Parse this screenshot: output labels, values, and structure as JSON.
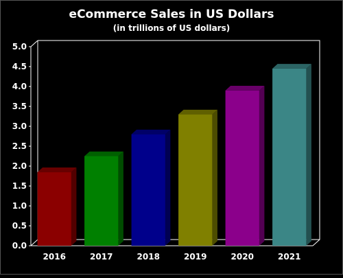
{
  "chart_data": {
    "type": "bar",
    "title": "eCommerce Sales in US Dollars",
    "subtitle": "(in trillions of US dollars)",
    "categories": [
      "2016",
      "2017",
      "2018",
      "2019",
      "2020",
      "2021"
    ],
    "values": [
      1.85,
      2.25,
      2.8,
      3.3,
      3.9,
      4.45
    ],
    "colors": [
      "#8b0000",
      "#008000",
      "#00008b",
      "#808000",
      "#8b008b",
      "#3b8686"
    ],
    "ylim": [
      0,
      5
    ],
    "yticks": [
      "0.0",
      "0.5",
      "1.0",
      "1.5",
      "2.0",
      "2.5",
      "3.0",
      "3.5",
      "4.0",
      "4.5",
      "5.0"
    ],
    "grid": false,
    "style": "3d"
  }
}
